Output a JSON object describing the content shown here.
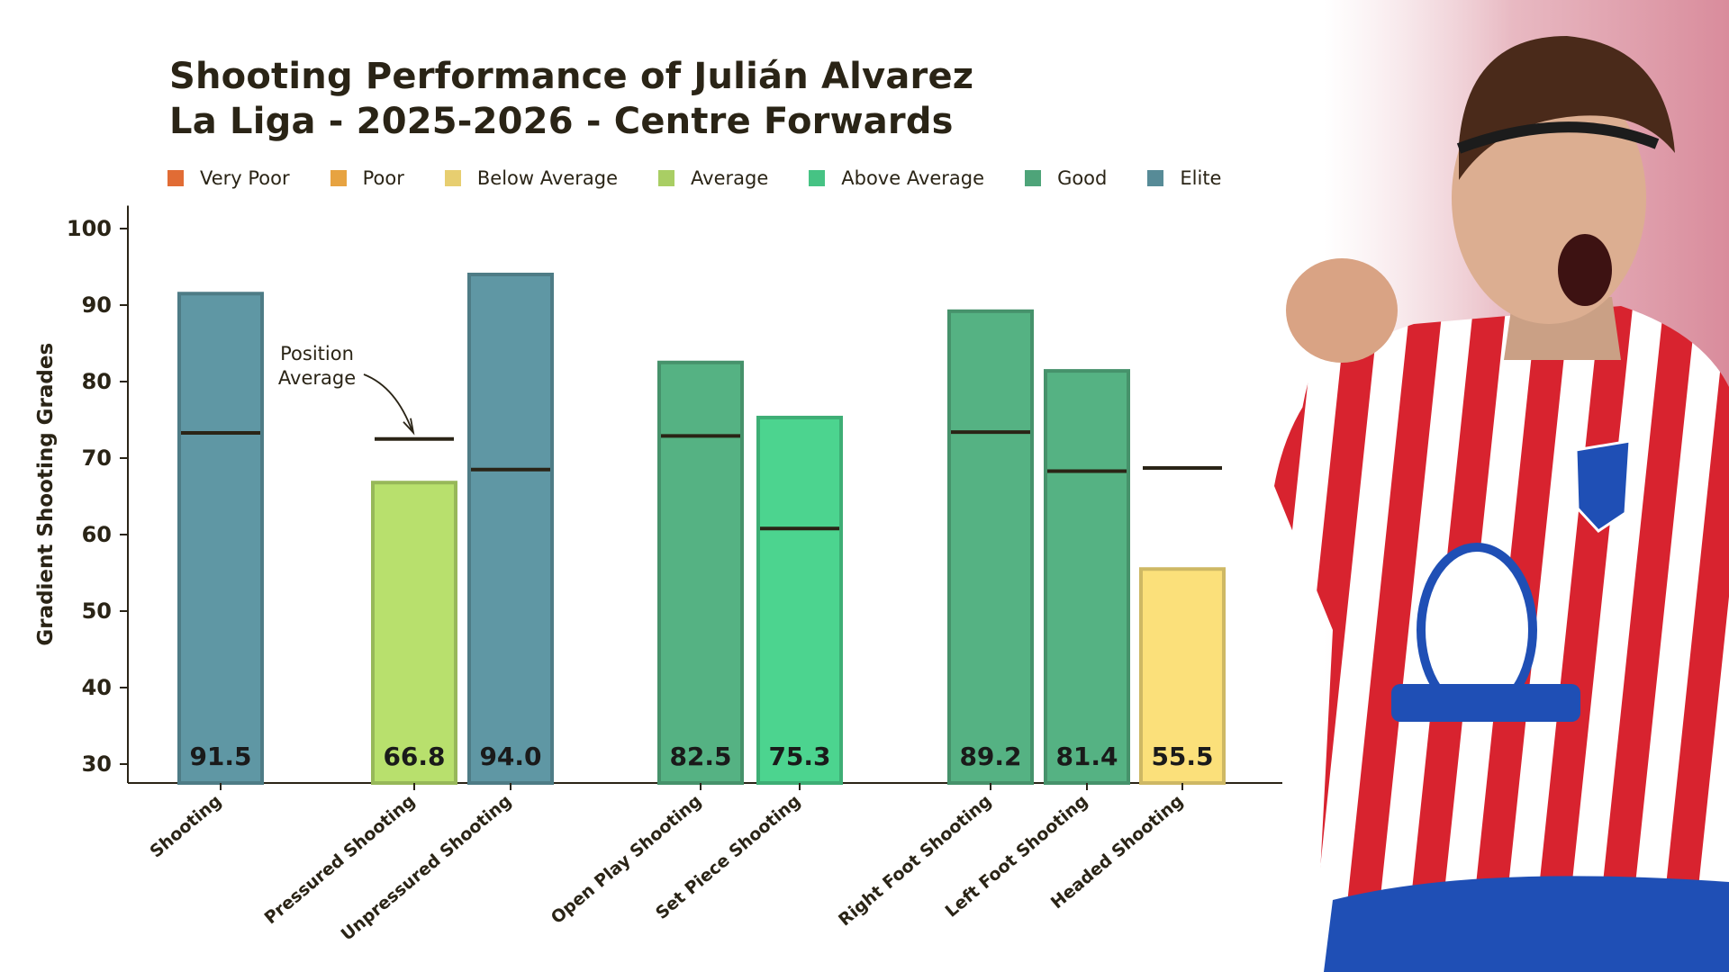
{
  "chart_data": {
    "type": "bar",
    "title": "Shooting Performance of Julián Alvarez",
    "subtitle": "La Liga - 2025-2026 - Centre Forwards",
    "ylabel": "Gradient Shooting Grades",
    "xlabel": "",
    "ylim": [
      27.5,
      103
    ],
    "yticks": [
      30,
      40,
      50,
      60,
      70,
      80,
      90,
      100
    ],
    "grid": false,
    "legend_position": "top",
    "legend": [
      {
        "label": "Very Poor",
        "color": "#f5753a"
      },
      {
        "label": "Poor",
        "color": "#fbb147"
      },
      {
        "label": "Below Average",
        "color": "#fbe07a"
      },
      {
        "label": "Average",
        "color": "#b8e06d"
      },
      {
        "label": "Above Average",
        "color": "#4cd48f"
      },
      {
        "label": "Good",
        "color": "#55b283"
      },
      {
        "label": "Elite",
        "color": "#5f97a4"
      }
    ],
    "categories": [
      "Shooting",
      "Pressured Shooting",
      "Unpressured Shooting",
      "Open Play Shooting",
      "Set Piece Shooting",
      "Right Foot Shooting",
      "Left Foot Shooting",
      "Headed Shooting"
    ],
    "values": [
      91.5,
      66.8,
      94.0,
      82.5,
      75.3,
      89.2,
      81.4,
      55.5
    ],
    "value_labels": [
      "91.5",
      "66.8",
      "94.0",
      "82.5",
      "75.3",
      "89.2",
      "81.4",
      "55.5"
    ],
    "grades": [
      "Elite",
      "Average",
      "Elite",
      "Good",
      "Above Average",
      "Good",
      "Good",
      "Below Average"
    ],
    "position_average": [
      73.3,
      72.5,
      68.5,
      72.9,
      60.8,
      73.4,
      68.3,
      68.7
    ],
    "annotation": {
      "lines": [
        "Position",
        "Average"
      ],
      "target_index": 1
    }
  }
}
